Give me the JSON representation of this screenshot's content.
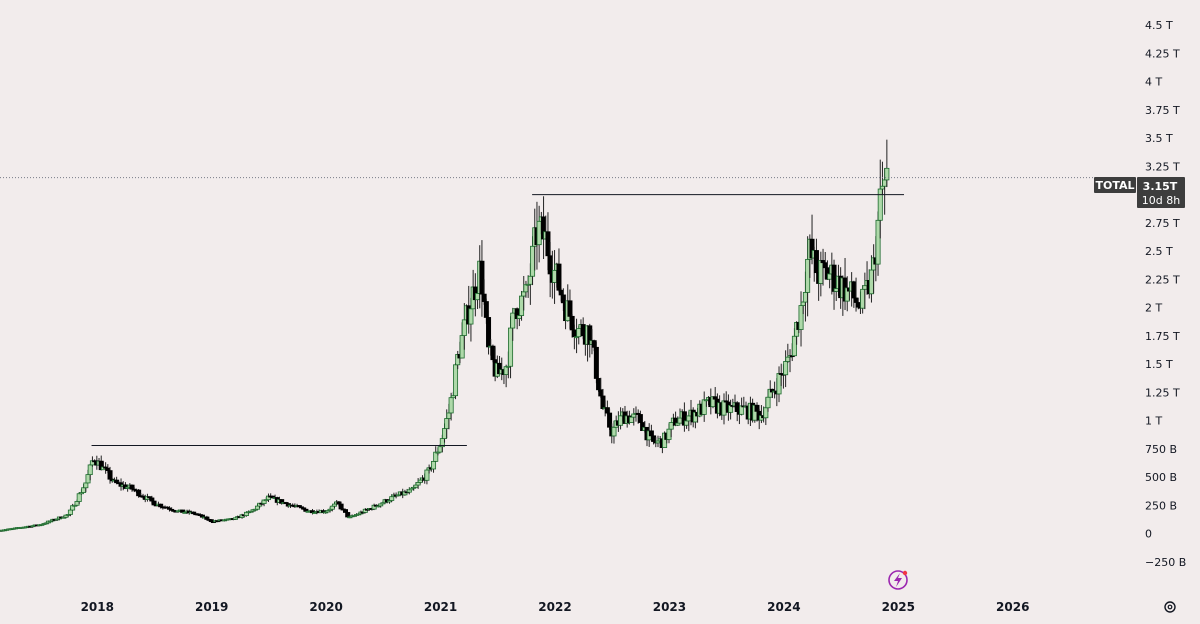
{
  "chart_data": {
    "type": "candlestick",
    "symbol": "TOTAL",
    "price_badge": {
      "symbol": "TOTAL",
      "value": "3.15T",
      "countdown": "10d 8h"
    },
    "current_value": 3.15,
    "y_unit": "trillion USD",
    "ylim": [
      -0.25,
      4.5
    ],
    "xlim": [
      2017.15,
      2026.85
    ],
    "y_ticks": [
      {
        "value": 4.5,
        "label": "4.5 T"
      },
      {
        "value": 4.25,
        "label": "4.25 T"
      },
      {
        "value": 4.0,
        "label": "4 T"
      },
      {
        "value": 3.75,
        "label": "3.75 T"
      },
      {
        "value": 3.5,
        "label": "3.5 T"
      },
      {
        "value": 3.25,
        "label": "3.25 T"
      },
      {
        "value": 2.75,
        "label": "2.75 T"
      },
      {
        "value": 2.5,
        "label": "2.5 T"
      },
      {
        "value": 2.25,
        "label": "2.25 T"
      },
      {
        "value": 2.0,
        "label": "2 T"
      },
      {
        "value": 1.75,
        "label": "1.75 T"
      },
      {
        "value": 1.5,
        "label": "1.5 T"
      },
      {
        "value": 1.25,
        "label": "1.25 T"
      },
      {
        "value": 1.0,
        "label": "1 T"
      },
      {
        "value": 0.75,
        "label": "750 B"
      },
      {
        "value": 0.5,
        "label": "500 B"
      },
      {
        "value": 0.25,
        "label": "250 B"
      },
      {
        "value": 0.0,
        "label": "0"
      },
      {
        "value": -0.25,
        "label": "−250 B"
      }
    ],
    "x_ticks": [
      {
        "value": 2018,
        "label": "2018"
      },
      {
        "value": 2019,
        "label": "2019"
      },
      {
        "value": 2020,
        "label": "2020"
      },
      {
        "value": 2021,
        "label": "2021"
      },
      {
        "value": 2022,
        "label": "2022"
      },
      {
        "value": 2023,
        "label": "2023"
      },
      {
        "value": 2024,
        "label": "2024"
      },
      {
        "value": 2025,
        "label": "2025"
      },
      {
        "value": 2026,
        "label": "2026"
      }
    ],
    "anchors": [
      [
        2017.15,
        0.03
      ],
      [
        2017.5,
        0.08
      ],
      [
        2017.75,
        0.17
      ],
      [
        2017.9,
        0.45
      ],
      [
        2017.97,
        0.68
      ],
      [
        2018.05,
        0.58
      ],
      [
        2018.15,
        0.45
      ],
      [
        2018.3,
        0.4
      ],
      [
        2018.5,
        0.27
      ],
      [
        2018.7,
        0.2
      ],
      [
        2018.85,
        0.18
      ],
      [
        2019.0,
        0.11
      ],
      [
        2019.2,
        0.13
      ],
      [
        2019.35,
        0.2
      ],
      [
        2019.5,
        0.32
      ],
      [
        2019.7,
        0.25
      ],
      [
        2019.85,
        0.2
      ],
      [
        2020.0,
        0.2
      ],
      [
        2020.1,
        0.27
      ],
      [
        2020.2,
        0.14
      ],
      [
        2020.4,
        0.23
      ],
      [
        2020.6,
        0.33
      ],
      [
        2020.75,
        0.38
      ],
      [
        2020.9,
        0.55
      ],
      [
        2021.0,
        0.8
      ],
      [
        2021.08,
        1.1
      ],
      [
        2021.15,
        1.55
      ],
      [
        2021.25,
        2.0
      ],
      [
        2021.35,
        2.35
      ],
      [
        2021.42,
        1.6
      ],
      [
        2021.5,
        1.4
      ],
      [
        2021.58,
        1.5
      ],
      [
        2021.65,
        2.0
      ],
      [
        2021.75,
        2.1
      ],
      [
        2021.85,
        2.7
      ],
      [
        2021.92,
        2.6
      ],
      [
        2022.0,
        2.3
      ],
      [
        2022.1,
        2.0
      ],
      [
        2022.2,
        1.8
      ],
      [
        2022.3,
        1.8
      ],
      [
        2022.42,
        1.1
      ],
      [
        2022.5,
        0.9
      ],
      [
        2022.6,
        1.05
      ],
      [
        2022.75,
        1.0
      ],
      [
        2022.85,
        0.8
      ],
      [
        2022.95,
        0.82
      ],
      [
        2023.05,
        1.0
      ],
      [
        2023.2,
        1.05
      ],
      [
        2023.35,
        1.15
      ],
      [
        2023.5,
        1.1
      ],
      [
        2023.65,
        1.1
      ],
      [
        2023.8,
        1.05
      ],
      [
        2023.95,
        1.35
      ],
      [
        2024.05,
        1.55
      ],
      [
        2024.15,
        2.0
      ],
      [
        2024.22,
        2.5
      ],
      [
        2024.3,
        2.3
      ],
      [
        2024.4,
        2.3
      ],
      [
        2024.5,
        2.2
      ],
      [
        2024.6,
        2.1
      ],
      [
        2024.68,
        2.0
      ],
      [
        2024.78,
        2.3
      ],
      [
        2024.85,
        3.0
      ],
      [
        2024.9,
        3.15
      ]
    ],
    "resistance_lines": [
      {
        "x0": 2017.95,
        "x1": 2021.23,
        "y": 0.78
      },
      {
        "x0": 2021.8,
        "x1": 2025.05,
        "y": 3.0
      }
    ],
    "last_value_line": 3.15,
    "colors": {
      "up_body": "#aed9a9",
      "up_border": "#1e6b2e",
      "down_body": "#000000",
      "down_border": "#000000",
      "wick": "#222222",
      "background": "#f2ecec",
      "badge": "#3d3d3d"
    }
  }
}
